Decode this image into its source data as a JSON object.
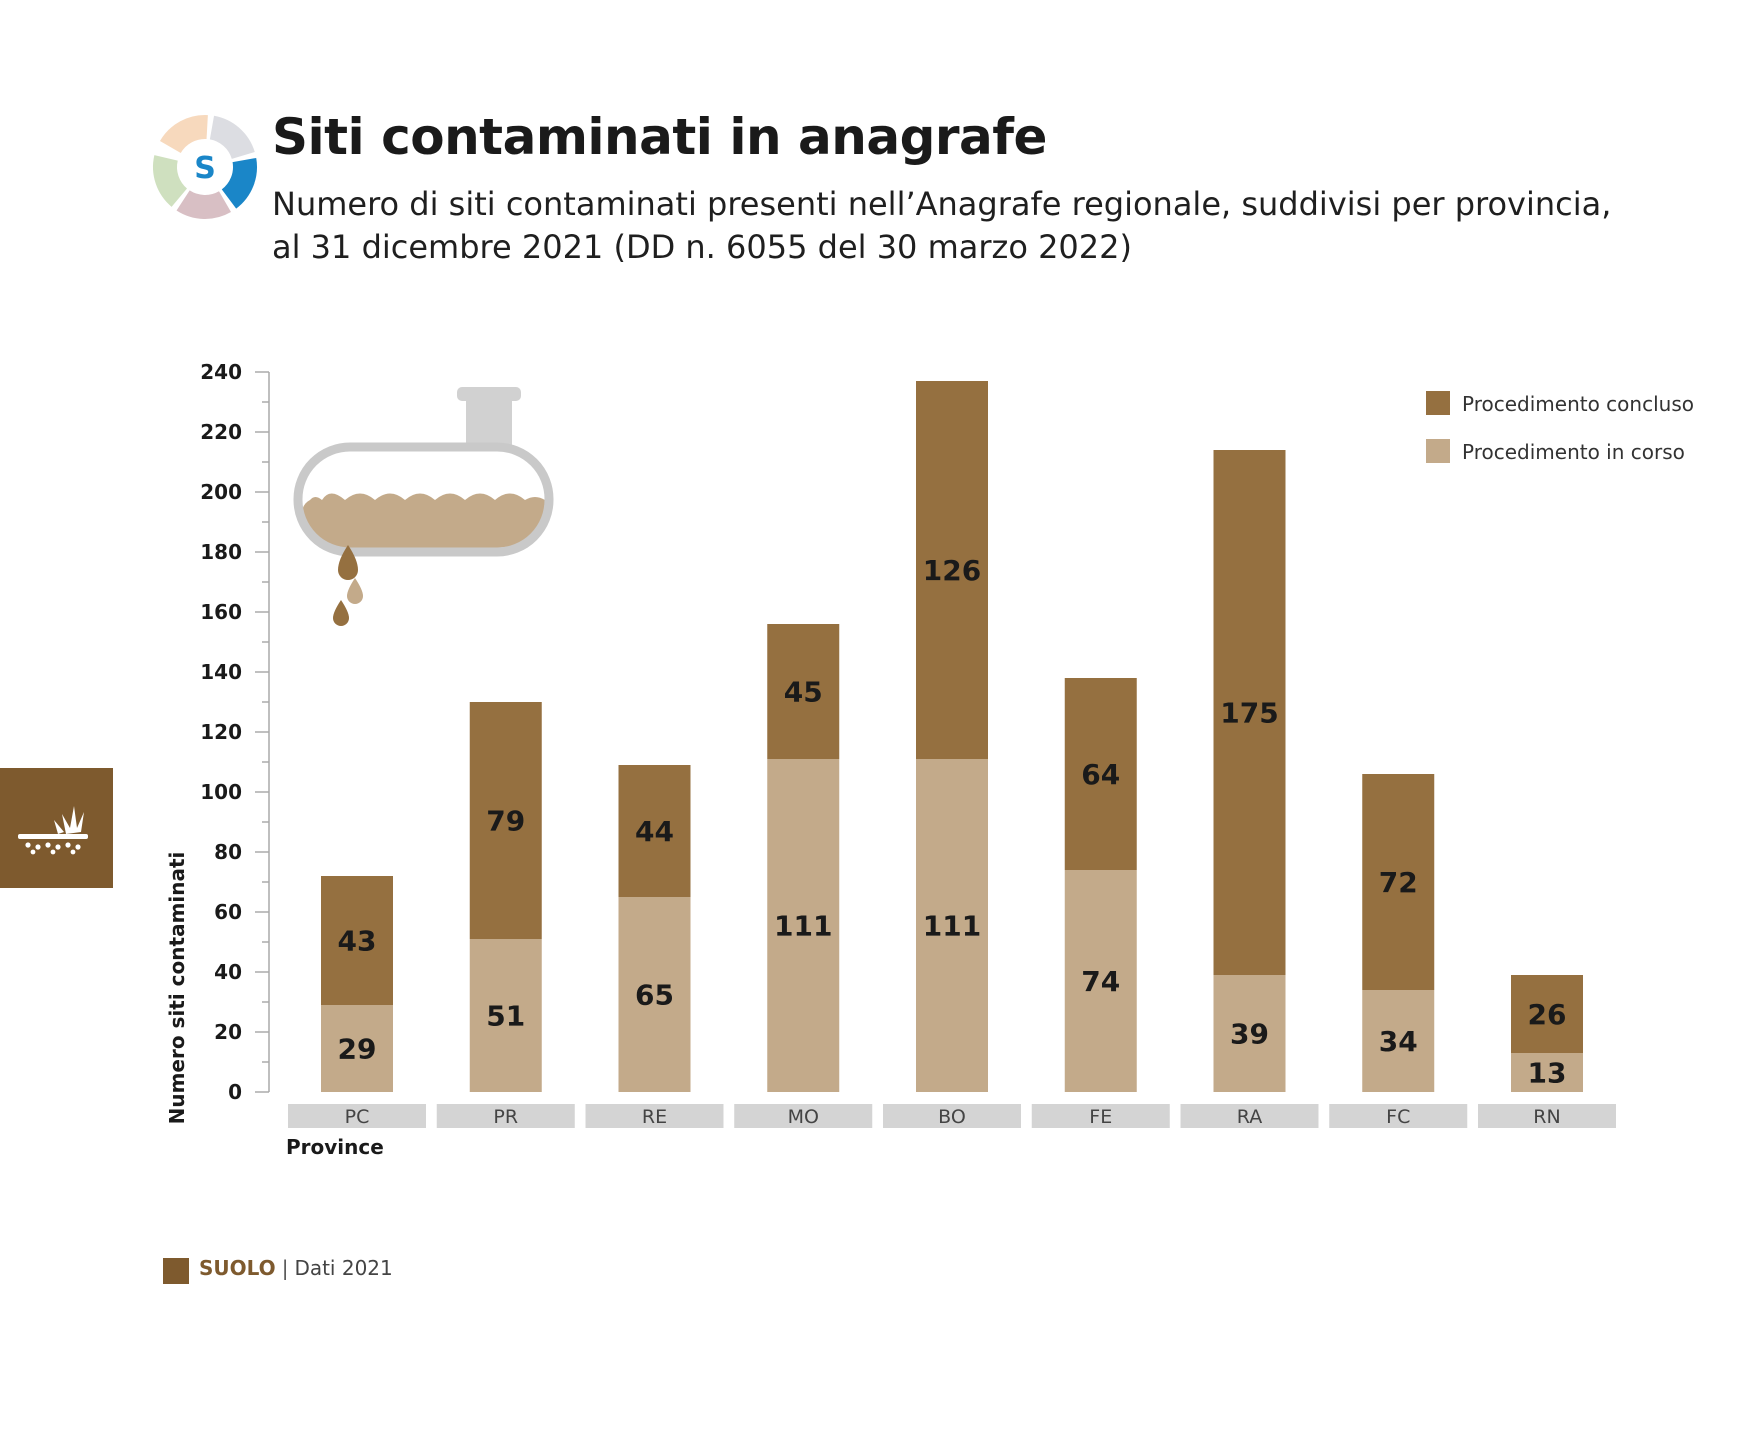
{
  "header": {
    "logo_letter": "S",
    "title": "Siti contaminati in anagrafe",
    "subtitle_line1": "Numero di siti contaminati presenti nell’Anagrafe regionale, suddivisi per provincia,",
    "subtitle_line2": "al 31 dicembre 2021 (DD n. 6055 del 30 marzo 2022)"
  },
  "side_tab": {
    "icon": "soil-icon"
  },
  "illustration": {
    "icon": "leaking-tank-icon"
  },
  "footer": {
    "section": "SUOLO",
    "separator": "|",
    "note": "Dati 2021"
  },
  "colors": {
    "concluso": "#957040",
    "in_corso": "#c3aa8a",
    "accent": "#7e5a2e",
    "province_band": "#d4d4d4"
  },
  "chart_data": {
    "type": "bar",
    "stacked": true,
    "categories": [
      "PC",
      "PR",
      "RE",
      "MO",
      "BO",
      "FE",
      "RA",
      "FC",
      "RN"
    ],
    "series": [
      {
        "name": "Procedimento in corso",
        "values": [
          29,
          51,
          65,
          111,
          111,
          74,
          39,
          34,
          13
        ]
      },
      {
        "name": "Procedimento concluso",
        "values": [
          43,
          79,
          44,
          45,
          126,
          64,
          175,
          72,
          26
        ]
      }
    ],
    "ylabel": "Numero siti contaminati",
    "xlabel": "Province",
    "ylim": [
      0,
      240
    ],
    "yticks": [
      0,
      20,
      40,
      60,
      80,
      100,
      120,
      140,
      160,
      180,
      200,
      220,
      240
    ],
    "legend_position": "top-right",
    "legend": [
      "Procedimento concluso",
      "Procedimento in corso"
    ],
    "grid": false
  }
}
